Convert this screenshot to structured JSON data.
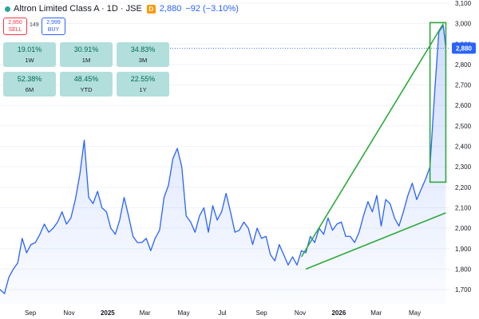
{
  "header": {
    "title": "Altron Limited Class A · 1D · JSE",
    "last": "2,880",
    "change": "−92 (−3.10%)",
    "status_color": "#26a69a"
  },
  "trade": {
    "sell_price": "2,850",
    "sell_label": "SELL",
    "spread": "149",
    "buy_price": "2,999",
    "buy_label": "BUY"
  },
  "performance": [
    {
      "value": "19.01%",
      "period": "1W"
    },
    {
      "value": "30.91%",
      "period": "1M"
    },
    {
      "value": "34.83%",
      "period": "3M"
    },
    {
      "value": "52.38%",
      "period": "6M"
    },
    {
      "value": "48.45%",
      "period": "YTD"
    },
    {
      "value": "22.55%",
      "period": "1Y"
    }
  ],
  "chart_data": {
    "type": "area",
    "title": "Altron Limited Class A · 1D · JSE",
    "ylim": [
      1630,
      3100
    ],
    "y_ticks": [
      "3,100",
      "3,000",
      "2,900",
      "2,800",
      "2,700",
      "2,600",
      "2,500",
      "2,400",
      "2,300",
      "2,200",
      "2,100",
      "2,000",
      "1,900",
      "1,800",
      "1,700"
    ],
    "x_ticks": [
      "Sep",
      "Nov",
      "2025",
      "Mar",
      "May",
      "Jul",
      "Sep",
      "Nov",
      "2026",
      "Mar",
      "May"
    ],
    "last_price_label": "2,880",
    "last_price": 2880,
    "colors": {
      "line": "#2962ff",
      "fill": "#2962ff",
      "drawings": "#2eaa3a",
      "last_price": "#2962ff"
    },
    "series": [
      {
        "x": [
          "2024-07-15",
          "2024-07-22",
          "2024-07-29",
          "2024-08-05",
          "2024-08-12",
          "2024-08-19",
          "2024-08-26",
          "2024-09-02",
          "2024-09-09",
          "2024-09-16",
          "2024-09-23",
          "2024-09-30",
          "2024-10-07",
          "2024-10-14",
          "2024-10-21",
          "2024-10-28",
          "2024-11-04",
          "2024-11-11",
          "2024-11-18",
          "2024-11-25",
          "2024-12-02",
          "2024-12-09",
          "2024-12-16",
          "2024-12-23",
          "2024-12-30",
          "2025-01-06",
          "2025-01-13",
          "2025-01-20",
          "2025-01-27",
          "2025-02-03",
          "2025-02-10",
          "2025-02-17",
          "2025-02-24",
          "2025-03-03",
          "2025-03-10",
          "2025-03-17",
          "2025-03-24",
          "2025-03-31",
          "2025-04-07",
          "2025-04-14",
          "2025-04-21",
          "2025-04-28",
          "2025-05-05",
          "2025-05-12",
          "2025-05-19",
          "2025-05-26",
          "2025-06-02",
          "2025-06-09",
          "2025-06-16",
          "2025-06-23",
          "2025-06-30",
          "2025-07-07",
          "2025-07-14",
          "2025-07-21",
          "2025-07-28",
          "2025-08-04",
          "2025-08-11",
          "2025-08-18",
          "2025-08-25",
          "2025-09-01",
          "2025-09-08",
          "2025-09-15",
          "2025-09-22",
          "2025-09-29",
          "2025-10-06",
          "2025-10-13",
          "2025-10-20",
          "2025-10-27",
          "2025-11-03",
          "2025-11-10",
          "2025-11-17",
          "2025-11-24",
          "2025-12-01",
          "2025-12-08",
          "2025-12-15",
          "2025-12-22",
          "2025-12-29",
          "2026-01-05",
          "2026-01-12",
          "2026-01-19",
          "2026-01-26",
          "2026-02-02",
          "2026-02-09",
          "2026-02-16",
          "2026-02-23",
          "2026-03-02",
          "2026-03-09",
          "2026-03-16",
          "2026-03-23",
          "2026-03-30",
          "2026-04-06",
          "2026-04-13",
          "2026-04-20",
          "2026-04-27",
          "2026-05-04",
          "2026-05-11",
          "2026-05-18",
          "2026-05-25",
          "2026-06-01",
          "2026-06-08",
          "2026-06-15",
          "2026-06-19"
        ],
        "values": [
          1700,
          1680,
          1760,
          1800,
          1830,
          1950,
          1880,
          1920,
          1930,
          1970,
          2020,
          1980,
          2000,
          2030,
          2080,
          2020,
          2050,
          2140,
          2260,
          2430,
          2150,
          2120,
          2180,
          2100,
          2080,
          2000,
          1970,
          2040,
          2150,
          2060,
          1960,
          1930,
          1930,
          1950,
          1890,
          1950,
          1990,
          2150,
          2210,
          2340,
          2390,
          2300,
          2060,
          2030,
          1980,
          2060,
          2100,
          1980,
          2110,
          2040,
          2080,
          2170,
          2080,
          1980,
          1990,
          2030,
          2000,
          1920,
          2000,
          1950,
          1960,
          1870,
          1840,
          1920,
          1870,
          1820,
          1860,
          1820,
          1890,
          1880,
          1960,
          1930,
          2000,
          1970,
          2050,
          1990,
          2020,
          2030,
          1960,
          1960,
          1930,
          1980,
          2060,
          2130,
          2080,
          2160,
          2010,
          2140,
          2120,
          2050,
          2010,
          2080,
          2160,
          2220,
          2140,
          2190,
          2240,
          2300,
          2650,
          2960,
          2990,
          2880
        ]
      }
    ],
    "drawings": [
      {
        "type": "trendline",
        "from": {
          "x": "2025-11-03",
          "y": 1860
        },
        "to": {
          "x": "2026-06-15",
          "y": 3000
        }
      },
      {
        "type": "trendline",
        "from": {
          "x": "2025-11-10",
          "y": 1800
        },
        "to": {
          "x": "2026-06-19",
          "y": 2075
        }
      },
      {
        "type": "rectangle",
        "from": {
          "x": "2026-05-25",
          "y": 2225
        },
        "to": {
          "x": "2026-06-19",
          "y": 3005
        }
      }
    ]
  }
}
